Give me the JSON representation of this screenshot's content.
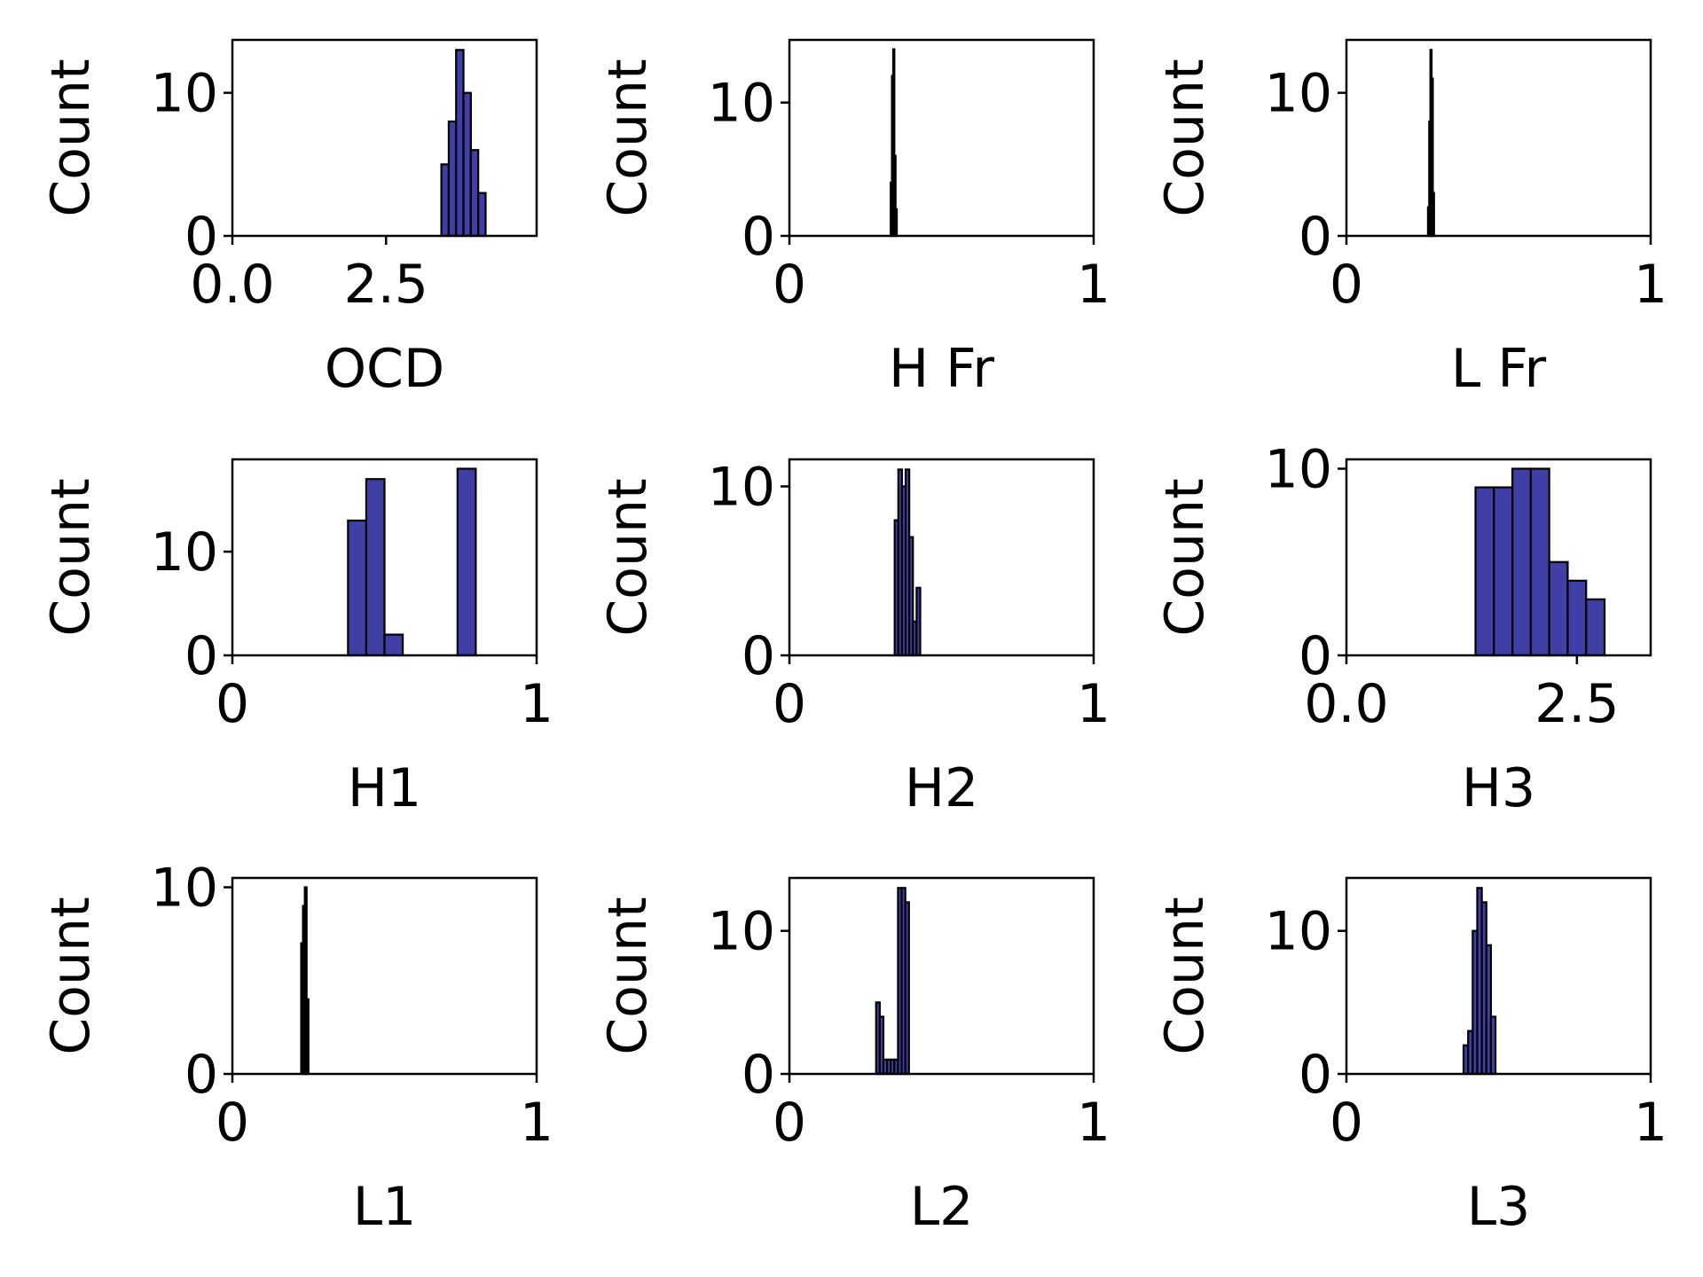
{
  "bar_fill": "#3f3fa6",
  "bar_edge": "#000000",
  "chart_data": [
    {
      "type": "bar",
      "xlabel": "OCD",
      "ylabel": "Count",
      "xlim": [
        0,
        4.95
      ],
      "ylim": [
        0,
        13.7
      ],
      "xticks": [
        0,
        2.5
      ],
      "xtick_labels": [
        "0.0",
        "2.5"
      ],
      "yticks": [
        0,
        10
      ],
      "ytick_labels": [
        "0",
        "10"
      ],
      "bins": [
        [
          3.4,
          3.52,
          5
        ],
        [
          3.52,
          3.64,
          8
        ],
        [
          3.64,
          3.76,
          13
        ],
        [
          3.76,
          3.88,
          10
        ],
        [
          3.88,
          4.0,
          6
        ],
        [
          4.0,
          4.12,
          3
        ]
      ]
    },
    {
      "type": "bar",
      "xlabel": "H Fr",
      "ylabel": "Count",
      "xlim": [
        0,
        1
      ],
      "ylim": [
        0,
        14.7
      ],
      "xticks": [
        0,
        1
      ],
      "xtick_labels": [
        "0",
        "1"
      ],
      "yticks": [
        0,
        10
      ],
      "ytick_labels": [
        "0",
        "10"
      ],
      "bins": [
        [
          0.333,
          0.337,
          4
        ],
        [
          0.337,
          0.341,
          12
        ],
        [
          0.341,
          0.345,
          14
        ],
        [
          0.345,
          0.349,
          6
        ],
        [
          0.349,
          0.353,
          2
        ]
      ]
    },
    {
      "type": "bar",
      "xlabel": "L Fr",
      "ylabel": "Count",
      "xlim": [
        0,
        1
      ],
      "ylim": [
        0,
        13.7
      ],
      "xticks": [
        0,
        1
      ],
      "xtick_labels": [
        "0",
        "1"
      ],
      "yticks": [
        0,
        10
      ],
      "ytick_labels": [
        "0",
        "10"
      ],
      "bins": [
        [
          0.268,
          0.272,
          2
        ],
        [
          0.272,
          0.276,
          8
        ],
        [
          0.276,
          0.28,
          13
        ],
        [
          0.28,
          0.284,
          11
        ],
        [
          0.284,
          0.288,
          3
        ]
      ]
    },
    {
      "type": "bar",
      "xlabel": "H1",
      "ylabel": "Count",
      "xlim": [
        0,
        1
      ],
      "ylim": [
        0,
        18.9
      ],
      "xticks": [
        0,
        1
      ],
      "xtick_labels": [
        "0",
        "1"
      ],
      "yticks": [
        0,
        10
      ],
      "ytick_labels": [
        "0",
        "10"
      ],
      "bins": [
        [
          0.38,
          0.44,
          13
        ],
        [
          0.44,
          0.5,
          17
        ],
        [
          0.5,
          0.56,
          2
        ],
        [
          0.56,
          0.62,
          0
        ],
        [
          0.62,
          0.68,
          0
        ],
        [
          0.68,
          0.74,
          0
        ],
        [
          0.74,
          0.8,
          18
        ]
      ]
    },
    {
      "type": "bar",
      "xlabel": "H2",
      "ylabel": "Count",
      "xlim": [
        0,
        1
      ],
      "ylim": [
        0,
        11.6
      ],
      "xticks": [
        0,
        1
      ],
      "xtick_labels": [
        "0",
        "1"
      ],
      "yticks": [
        0,
        10
      ],
      "ytick_labels": [
        "0",
        "10"
      ],
      "bins": [
        [
          0.346,
          0.358,
          8
        ],
        [
          0.358,
          0.37,
          11
        ],
        [
          0.37,
          0.382,
          10
        ],
        [
          0.382,
          0.394,
          11
        ],
        [
          0.394,
          0.406,
          7
        ],
        [
          0.406,
          0.418,
          2
        ],
        [
          0.418,
          0.43,
          4
        ]
      ]
    },
    {
      "type": "bar",
      "xlabel": "H3",
      "ylabel": "Count",
      "xlim": [
        0,
        3.3
      ],
      "ylim": [
        0,
        10.5
      ],
      "xticks": [
        0,
        2.5
      ],
      "xtick_labels": [
        "0.0",
        "2.5"
      ],
      "yticks": [
        0,
        10
      ],
      "ytick_labels": [
        "0",
        "10"
      ],
      "bins": [
        [
          1.4,
          1.6,
          9
        ],
        [
          1.6,
          1.8,
          9
        ],
        [
          1.8,
          2.0,
          10
        ],
        [
          2.0,
          2.2,
          10
        ],
        [
          2.2,
          2.4,
          5
        ],
        [
          2.4,
          2.6,
          4
        ],
        [
          2.6,
          2.8,
          3
        ]
      ]
    },
    {
      "type": "bar",
      "xlabel": "L1",
      "ylabel": "Count",
      "xlim": [
        0,
        1
      ],
      "ylim": [
        0,
        10.5
      ],
      "xticks": [
        0,
        1
      ],
      "xtick_labels": [
        "0",
        "1"
      ],
      "yticks": [
        0,
        10
      ],
      "ytick_labels": [
        "0",
        "10"
      ],
      "bins": [
        [
          0.226,
          0.232,
          7
        ],
        [
          0.232,
          0.238,
          9
        ],
        [
          0.238,
          0.244,
          10
        ],
        [
          0.244,
          0.25,
          4
        ]
      ]
    },
    {
      "type": "bar",
      "xlabel": "L2",
      "ylabel": "Count",
      "xlim": [
        0,
        1
      ],
      "ylim": [
        0,
        13.7
      ],
      "xticks": [
        0,
        1
      ],
      "xtick_labels": [
        "0",
        "1"
      ],
      "yticks": [
        0,
        10
      ],
      "ytick_labels": [
        "0",
        "10"
      ],
      "bins": [
        [
          0.285,
          0.297,
          5
        ],
        [
          0.297,
          0.309,
          4
        ],
        [
          0.309,
          0.321,
          1
        ],
        [
          0.321,
          0.333,
          1
        ],
        [
          0.333,
          0.345,
          1
        ],
        [
          0.345,
          0.357,
          1
        ],
        [
          0.357,
          0.369,
          13
        ],
        [
          0.369,
          0.381,
          13
        ],
        [
          0.381,
          0.393,
          12
        ]
      ]
    },
    {
      "type": "bar",
      "xlabel": "L3",
      "ylabel": "Count",
      "xlim": [
        0,
        1
      ],
      "ylim": [
        0,
        13.7
      ],
      "xticks": [
        0,
        1
      ],
      "xtick_labels": [
        "0",
        "1"
      ],
      "yticks": [
        0,
        10
      ],
      "ytick_labels": [
        "0",
        "10"
      ],
      "bins": [
        [
          0.385,
          0.4,
          2
        ],
        [
          0.4,
          0.415,
          3
        ],
        [
          0.415,
          0.43,
          10
        ],
        [
          0.43,
          0.445,
          13
        ],
        [
          0.445,
          0.46,
          12
        ],
        [
          0.46,
          0.475,
          9
        ],
        [
          0.475,
          0.49,
          4
        ]
      ]
    }
  ]
}
